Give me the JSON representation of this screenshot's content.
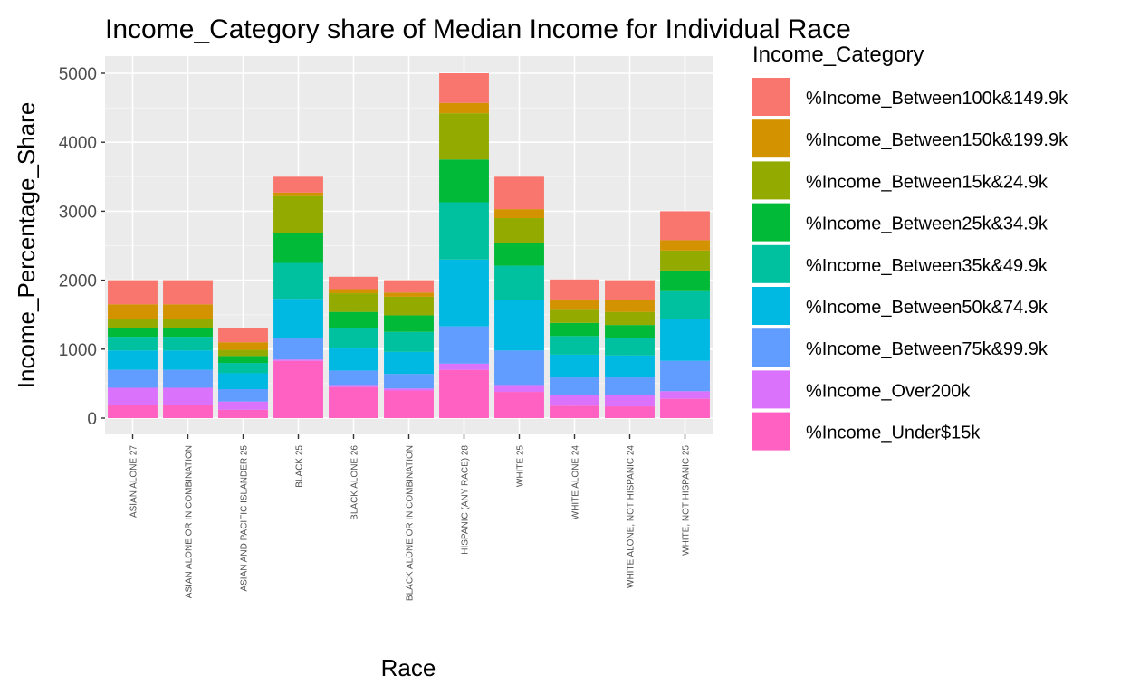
{
  "chart_data": {
    "type": "bar",
    "stacked": true,
    "title": "Income_Category share of Median Income for Individual Race",
    "xlabel": "Race",
    "ylabel": "Income_Percentage_Share",
    "ylim": [
      0,
      5200
    ],
    "yticks": [
      0,
      1000,
      2000,
      3000,
      4000,
      5000
    ],
    "grid": true,
    "legend_title": "Income_Category",
    "legend_position": "right",
    "categories": [
      "ASIAN ALONE 27",
      "ASIAN ALONE OR IN COMBINATION",
      "ASIAN AND PACIFIC ISLANDER 25",
      "BLACK 25",
      "BLACK ALONE 26",
      "BLACK ALONE OR IN COMBINATION",
      "HISPANIC (ANY RACE) 28",
      "WHITE 25",
      "WHITE ALONE 24",
      "WHITE ALONE, NOT HISPANIC 24",
      "WHITE, NOT HISPANIC 25"
    ],
    "series": [
      {
        "name": "%Income_Between100k&149.9k",
        "color": "#F8766D",
        "values": [
          350,
          350,
          200,
          230,
          180,
          180,
          430,
          470,
          290,
          290,
          420
        ]
      },
      {
        "name": "%Income_Between150k&199.9k",
        "color": "#D39200",
        "values": [
          210,
          210,
          110,
          50,
          60,
          60,
          150,
          130,
          150,
          170,
          150
        ]
      },
      {
        "name": "%Income_Between15k&24.9k",
        "color": "#93AA00",
        "values": [
          130,
          130,
          90,
          530,
          270,
          270,
          670,
          360,
          190,
          190,
          290
        ]
      },
      {
        "name": "%Income_Between25k&34.9k",
        "color": "#00BA38",
        "values": [
          130,
          130,
          100,
          440,
          240,
          240,
          620,
          330,
          190,
          190,
          300
        ]
      },
      {
        "name": "%Income_Between35k&49.9k",
        "color": "#00C19F",
        "values": [
          200,
          200,
          150,
          520,
          290,
          290,
          830,
          500,
          270,
          250,
          400
        ]
      },
      {
        "name": "%Income_Between50k&74.9k",
        "color": "#00B9E3",
        "values": [
          280,
          280,
          230,
          570,
          320,
          320,
          970,
          730,
          330,
          320,
          610
        ]
      },
      {
        "name": "%Income_Between75k&99.9k",
        "color": "#619CFF",
        "values": [
          260,
          260,
          180,
          310,
          210,
          210,
          540,
          500,
          260,
          250,
          440
        ]
      },
      {
        "name": "%Income_Over200k",
        "color": "#DB72FB",
        "values": [
          250,
          250,
          120,
          20,
          30,
          30,
          90,
          100,
          150,
          170,
          110
        ]
      },
      {
        "name": "%Income_Under$15k",
        "color": "#FF61C3",
        "values": [
          190,
          190,
          120,
          830,
          450,
          400,
          700,
          380,
          180,
          170,
          280
        ]
      }
    ]
  }
}
